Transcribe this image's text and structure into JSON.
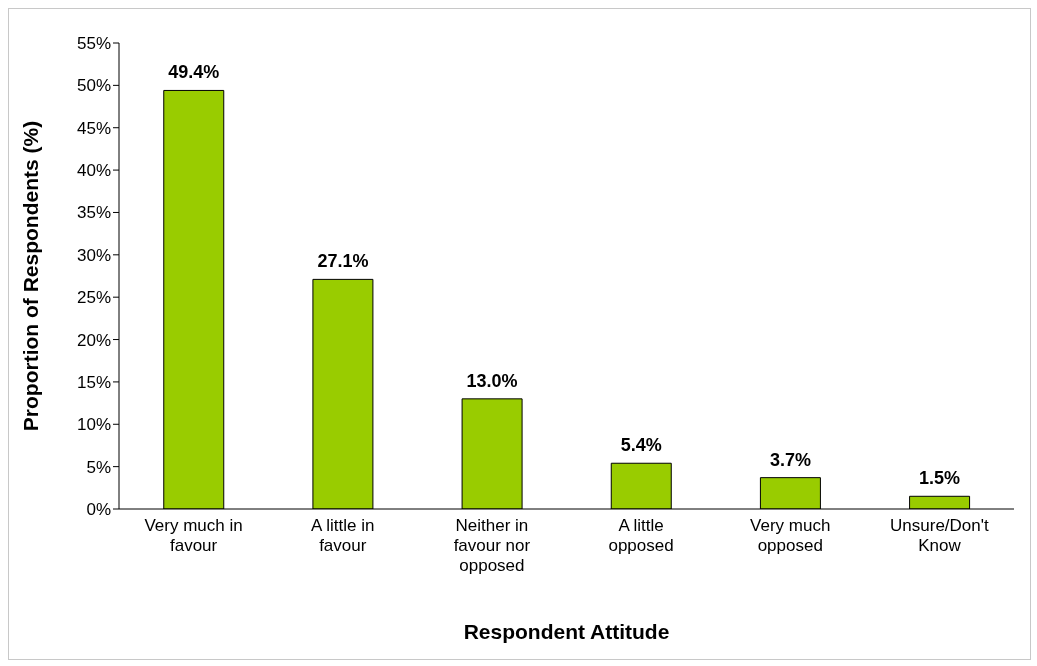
{
  "chart_data": {
    "type": "bar",
    "xlabel": "Respondent Attitude",
    "ylabel": "Proportion of Respondents (%)",
    "categories": [
      "Very much in favour",
      "A little in favour",
      "Neither in favour nor opposed",
      "A little opposed",
      "Very much opposed",
      "Unsure/Don't Know"
    ],
    "values": [
      49.4,
      27.1,
      13.0,
      5.4,
      3.7,
      1.5
    ],
    "value_labels": [
      "49.4%",
      "27.1%",
      "13.0%",
      "5.4%",
      "3.7%",
      "1.5%"
    ],
    "color": "#99cc00",
    "ylim": [
      0,
      55
    ],
    "yticks": [
      {
        "value": 0,
        "label": "0%"
      },
      {
        "value": 5,
        "label": "5%"
      },
      {
        "value": 10,
        "label": "10%"
      },
      {
        "value": 15,
        "label": "15%"
      },
      {
        "value": 20,
        "label": "20%"
      },
      {
        "value": 25,
        "label": "25%"
      },
      {
        "value": 30,
        "label": "30%"
      },
      {
        "value": 35,
        "label": "35%"
      },
      {
        "value": 40,
        "label": "40%"
      },
      {
        "value": 45,
        "label": "45%"
      },
      {
        "value": 50,
        "label": "50%"
      },
      {
        "value": 55,
        "label": "55%"
      }
    ],
    "grid": false,
    "legend": false
  }
}
